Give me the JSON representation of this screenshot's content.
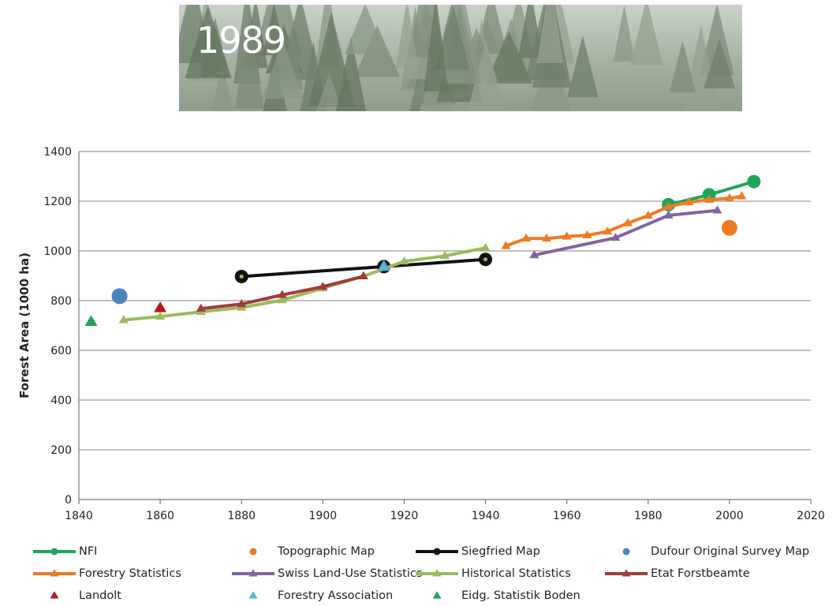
{
  "banner": {
    "title": "1989"
  },
  "chart_data": {
    "type": "line",
    "title": "",
    "xlabel": "",
    "ylabel": "Forest Area (1000 ha)",
    "xlim": [
      1840,
      2020
    ],
    "ylim": [
      0,
      1400
    ],
    "x_ticks": [
      1840,
      1860,
      1880,
      1900,
      1920,
      1940,
      1960,
      1980,
      2000,
      2020
    ],
    "y_ticks": [
      0,
      200,
      400,
      600,
      800,
      1000,
      1200,
      1400
    ],
    "grid": "horizontal",
    "legend_position": "bottom",
    "series": [
      {
        "name": "NFI",
        "color": "#1fa55b",
        "marker": "circle",
        "line": true,
        "points": [
          [
            1985,
            1186
          ],
          [
            1995,
            1226
          ],
          [
            2006,
            1279
          ]
        ]
      },
      {
        "name": "Topographic Map",
        "color": "#ee7a22",
        "marker": "circle",
        "line": false,
        "points": [
          [
            2000,
            1093
          ]
        ]
      },
      {
        "name": "Siegfried Map",
        "color": "#111111",
        "marker": "circle",
        "line": true,
        "points": [
          [
            1880,
            897
          ],
          [
            1915,
            937
          ],
          [
            1940,
            966
          ]
        ]
      },
      {
        "name": "Dufour Original Survey Map",
        "color": "#4f81bd",
        "marker": "circle",
        "line": false,
        "points": [
          [
            1850,
            818
          ]
        ]
      },
      {
        "name": "Forestry Statistics",
        "color": "#ee7a22",
        "marker": "triangle",
        "line": true,
        "points": [
          [
            1945,
            1020
          ],
          [
            1950,
            1050
          ],
          [
            1955,
            1050
          ],
          [
            1960,
            1058
          ],
          [
            1965,
            1063
          ],
          [
            1970,
            1078
          ],
          [
            1975,
            1112
          ],
          [
            1980,
            1142
          ],
          [
            1985,
            1178
          ],
          [
            1990,
            1196
          ],
          [
            1995,
            1206
          ],
          [
            2000,
            1212
          ],
          [
            2003,
            1220
          ]
        ]
      },
      {
        "name": "Swiss Land-Use Statistics",
        "color": "#8064a2",
        "marker": "triangle",
        "line": true,
        "points": [
          [
            1952,
            983
          ],
          [
            1972,
            1053
          ],
          [
            1985,
            1143
          ],
          [
            1997,
            1163
          ]
        ]
      },
      {
        "name": "Historical Statistics",
        "color": "#9bbb59",
        "marker": "triangle",
        "line": true,
        "points": [
          [
            1851,
            722
          ],
          [
            1860,
            736
          ],
          [
            1870,
            755
          ],
          [
            1880,
            772
          ],
          [
            1890,
            802
          ],
          [
            1900,
            850
          ],
          [
            1910,
            898
          ],
          [
            1920,
            958
          ],
          [
            1930,
            980
          ],
          [
            1940,
            1012
          ]
        ]
      },
      {
        "name": "Etat Forstbeamte",
        "color": "#a23b3b",
        "marker": "triangle",
        "line": true,
        "points": [
          [
            1870,
            768
          ],
          [
            1880,
            786
          ],
          [
            1890,
            823
          ],
          [
            1900,
            856
          ],
          [
            1910,
            898
          ]
        ]
      },
      {
        "name": "Landolt",
        "color": "#c0141c",
        "marker": "triangle",
        "line": false,
        "points": [
          [
            1860,
            770
          ]
        ]
      },
      {
        "name": "Forestry Association",
        "color": "#4fb6d8",
        "marker": "triangle",
        "line": false,
        "points": [
          [
            1915,
            937
          ]
        ]
      },
      {
        "name": "Eidg. Statistik Boden",
        "color": "#1fa55b",
        "marker": "triangle",
        "line": false,
        "points": [
          [
            1843,
            715
          ]
        ]
      }
    ]
  }
}
